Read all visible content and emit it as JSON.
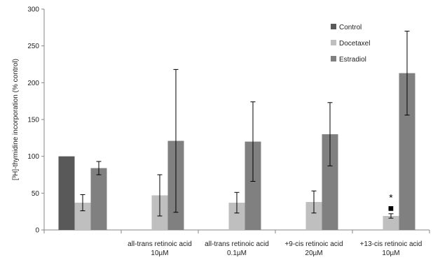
{
  "chart_data": {
    "type": "bar",
    "title": "",
    "xlabel": "",
    "ylabel": "[³H]-thymidine incorporation (% control)",
    "ylim": [
      0,
      300
    ],
    "yticks": [
      0,
      50,
      100,
      150,
      200,
      250,
      300
    ],
    "grid": false,
    "legend_position": "top-right",
    "categories": [
      {
        "line1": "",
        "line2": ""
      },
      {
        "line1": "all-trans retinoic acid",
        "line2": "10µM"
      },
      {
        "line1": "all-trans retinoic acid",
        "line2": "0.1µM"
      },
      {
        "line1": "+9-cis retinoic acid",
        "line2": "20µM"
      },
      {
        "line1": "+13-cis retinoic acid",
        "line2": "10µM"
      }
    ],
    "series": [
      {
        "name": "Control",
        "color": "#595959",
        "values": [
          100,
          null,
          null,
          null,
          null
        ],
        "errors": [
          null,
          null,
          null,
          null,
          null
        ]
      },
      {
        "name": "Docetaxel",
        "color": "#bfbfbf",
        "values": [
          37,
          47,
          37,
          38,
          19
        ],
        "errors": [
          11,
          28,
          14,
          15,
          3
        ]
      },
      {
        "name": "Estradiol",
        "color": "#808080",
        "values": [
          84,
          121,
          120,
          130,
          213
        ],
        "errors": [
          9,
          97,
          54,
          43,
          57
        ]
      }
    ],
    "annotations": [
      {
        "text": "*",
        "category": 4,
        "series": 1,
        "value": 44
      },
      {
        "text": "■",
        "category": 4,
        "series": 1,
        "value": 30
      }
    ]
  }
}
